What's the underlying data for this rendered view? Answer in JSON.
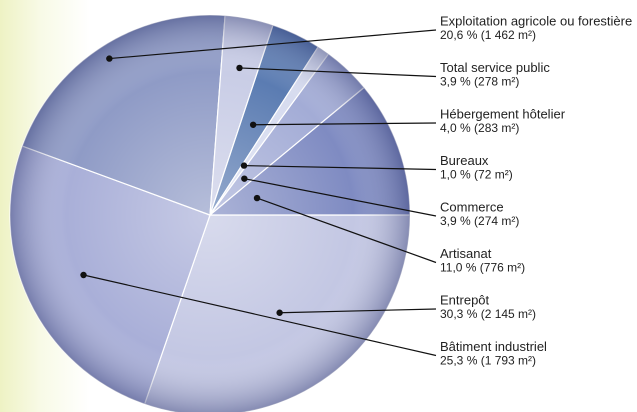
{
  "chart_data": {
    "type": "pie",
    "categories": [
      "Exploitation agricole ou forestière",
      "Total service public",
      "Hébergement hôtelier",
      "Bureaux",
      "Commerce",
      "Artisanat",
      "Entrepôt",
      "Bâtiment industriel"
    ],
    "values": [
      20.6,
      3.9,
      4.0,
      1.0,
      3.9,
      11.0,
      30.3,
      25.3
    ],
    "value_labels": [
      "20,6 % (1 462 m²)",
      "3,9 % (278 m²)",
      "4,0 % (283 m²)",
      "1,0 % (72 m²)",
      "3,9 % (274 m²)",
      "11,0 % (776 m²)",
      "30,3 % (2 145 m²)",
      "25,3 % (1 793 m²)"
    ],
    "colors": [
      "#8f9bc6",
      "#c9cde6",
      "#5b7cb2",
      "#d6dbef",
      "#a3acd6",
      "#7f8bc2",
      "#c3c7e3",
      "#a9afd8"
    ]
  }
}
